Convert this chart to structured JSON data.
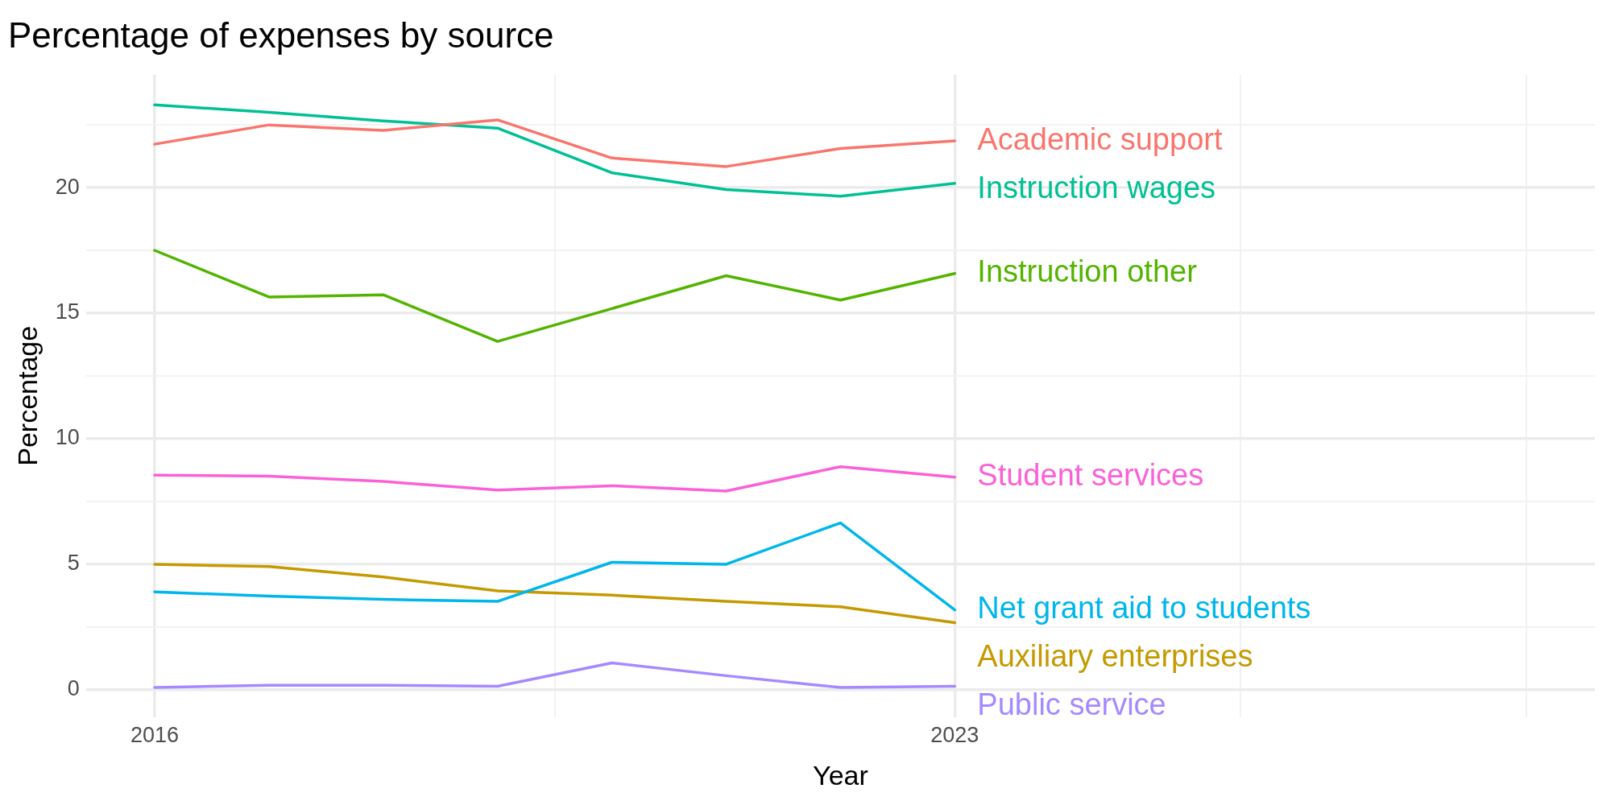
{
  "chart_data": {
    "type": "line",
    "title": "Percentage of expenses by source",
    "xlabel": "Year",
    "ylabel": "Percentage",
    "x": [
      2016,
      2017,
      2018,
      2019,
      2020,
      2021,
      2022,
      2023
    ],
    "xlim": [
      2015.4,
      2028.6
    ],
    "xticks": [
      2016,
      {
        "value": 2019.5,
        "label": null
      },
      2023,
      {
        "value": 2025.5,
        "label": null
      },
      {
        "value": 2028,
        "label": null
      }
    ],
    "ylim": [
      -1.1,
      24.5
    ],
    "yticks": [
      0,
      {
        "value": 2.5,
        "label": null
      },
      5,
      {
        "value": 7.5,
        "label": null
      },
      10,
      {
        "value": 12.5,
        "label": null
      },
      15,
      {
        "value": 17.5,
        "label": null
      },
      20,
      {
        "value": 22.5,
        "label": null
      }
    ],
    "grid": true,
    "legend": false,
    "marker": "none",
    "line_style": "solid",
    "series": [
      {
        "name": "Academic support",
        "color": "#f8766d",
        "values": [
          21.73,
          22.5,
          22.28,
          22.7,
          21.18,
          20.84,
          21.56,
          21.86
        ]
      },
      {
        "name": "Instruction wages",
        "color": "#00c094",
        "values": [
          23.3,
          23.0,
          22.66,
          22.37,
          20.59,
          19.92,
          19.66,
          20.17
        ]
      },
      {
        "name": "Instruction other",
        "color": "#53b400",
        "values": [
          17.5,
          15.64,
          15.73,
          13.87,
          15.18,
          16.49,
          15.52,
          16.58
        ]
      },
      {
        "name": "Student services",
        "color": "#fb61d7",
        "values": [
          8.54,
          8.5,
          8.29,
          7.95,
          8.12,
          7.91,
          8.88,
          8.46
        ]
      },
      {
        "name": "Net grant aid to students",
        "color": "#00b6eb",
        "values": [
          3.89,
          3.72,
          3.59,
          3.51,
          5.07,
          4.99,
          6.64,
          3.17
        ]
      },
      {
        "name": "Auxiliary enterprises",
        "color": "#c49a00",
        "values": [
          4.99,
          4.9,
          4.48,
          3.93,
          3.76,
          3.51,
          3.3,
          2.66
        ]
      },
      {
        "name": "Public service",
        "color": "#a58aff",
        "values": [
          0.08,
          0.17,
          0.17,
          0.13,
          1.06,
          0.55,
          0.08,
          0.13
        ]
      }
    ]
  }
}
